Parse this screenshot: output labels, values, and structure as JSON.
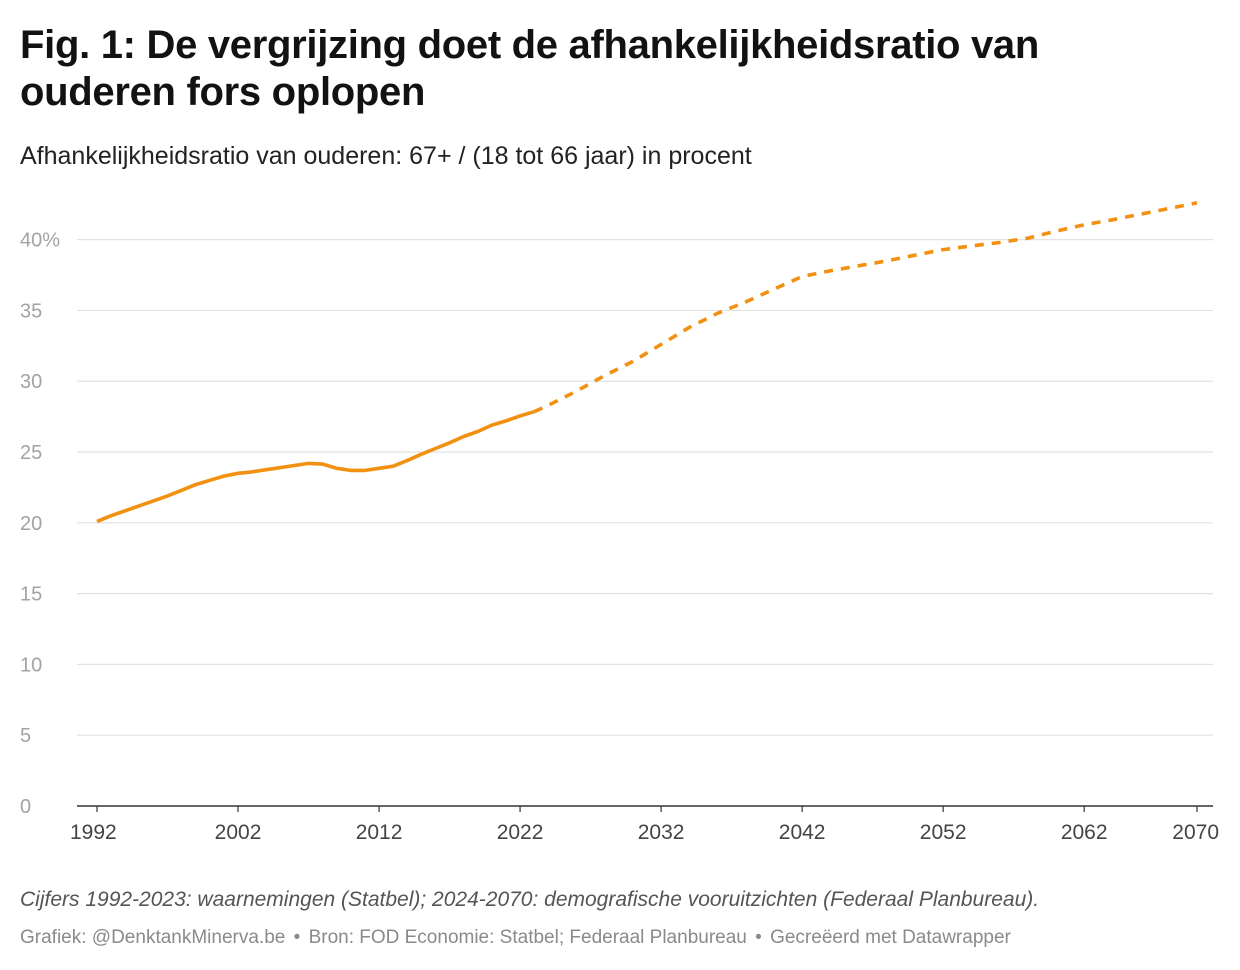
{
  "title": "Fig. 1: De vergrijzing doet de afhankelijkheidsratio van ouderen fors oplopen",
  "subtitle": "Afhankelijkheidsratio van ouderen: 67+ / (18 tot 66 jaar) in procent",
  "note": "Cijfers 1992-2023: waarnemingen (Statbel); 2024-2070: demografische vooruitzichten (Federaal Planbureau).",
  "footer": {
    "credit": "Grafiek: @DenktankMinerva.be",
    "separator": "•",
    "source": "Bron: FOD Economie: Statbel; Federaal Planbureau",
    "tool": "Gecreëerd met Datawrapper"
  },
  "colors": {
    "line": "#f29111",
    "grid": "#e2e2e2",
    "axis": "#333333"
  },
  "chart_data": {
    "type": "line",
    "x_ticks": [
      1992,
      2002,
      2012,
      2022,
      2032,
      2042,
      2052,
      2062,
      2070
    ],
    "y_ticks": [
      0,
      5,
      10,
      15,
      20,
      25,
      30,
      35,
      40
    ],
    "y_tick_labels": [
      "0",
      "5",
      "10",
      "15",
      "20",
      "25",
      "30",
      "35",
      "40%"
    ],
    "xlim": [
      1992,
      2070
    ],
    "ylim": [
      0,
      42.8
    ],
    "grid": true,
    "series": [
      {
        "style": "solid",
        "x": [
          1992,
          1993,
          1994,
          1995,
          1996,
          1997,
          1998,
          1999,
          2000,
          2001,
          2002,
          2003,
          2004,
          2005,
          2006,
          2007,
          2008,
          2009,
          2010,
          2011,
          2012,
          2013,
          2014,
          2015,
          2016,
          2017,
          2018,
          2019,
          2020,
          2021,
          2022,
          2023
        ],
        "values": [
          20.1,
          20.5,
          20.85,
          21.2,
          21.55,
          21.9,
          22.3,
          22.7,
          23.0,
          23.3,
          23.5,
          23.6,
          23.75,
          23.9,
          24.05,
          24.2,
          24.15,
          23.85,
          23.7,
          23.7,
          23.85,
          24.0,
          24.4,
          24.85,
          25.25,
          25.65,
          26.1,
          26.45,
          26.9,
          27.2,
          27.55,
          27.85
        ]
      },
      {
        "style": "dashed",
        "x": [
          2023,
          2024,
          2026,
          2028,
          2030,
          2032,
          2034,
          2036,
          2038,
          2040,
          2042,
          2044,
          2046,
          2048,
          2050,
          2052,
          2054,
          2056,
          2058,
          2060,
          2062,
          2064,
          2066,
          2068,
          2070
        ],
        "values": [
          27.85,
          28.3,
          29.3,
          30.4,
          31.4,
          32.6,
          33.8,
          34.8,
          35.6,
          36.5,
          37.4,
          37.8,
          38.15,
          38.5,
          38.9,
          39.3,
          39.55,
          39.8,
          40.1,
          40.6,
          41.05,
          41.4,
          41.8,
          42.2,
          42.6
        ]
      }
    ]
  }
}
